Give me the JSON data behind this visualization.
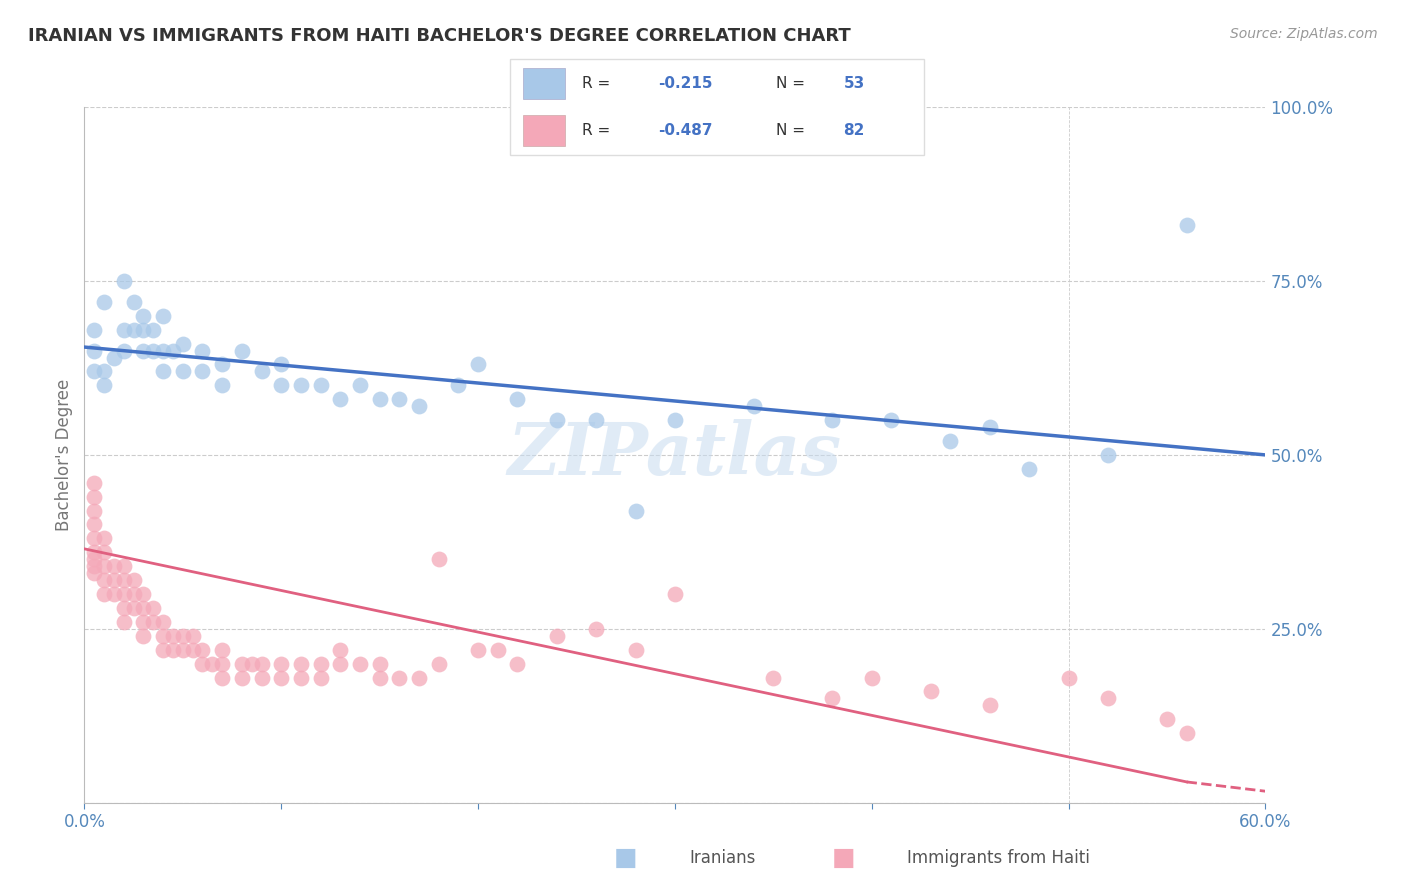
{
  "title": "IRANIAN VS IMMIGRANTS FROM HAITI BACHELOR'S DEGREE CORRELATION CHART",
  "source": "Source: ZipAtlas.com",
  "ylabel": "Bachelor's Degree",
  "xlim": [
    0.0,
    0.6
  ],
  "ylim": [
    0.0,
    1.0
  ],
  "y_ticks": [
    0.0,
    0.25,
    0.5,
    0.75,
    1.0
  ],
  "y_tick_labels_right": [
    "",
    "25.0%",
    "50.0%",
    "75.0%",
    "100.0%"
  ],
  "x_ticks": [
    0.0,
    0.1,
    0.2,
    0.3,
    0.4,
    0.5,
    0.6
  ],
  "x_tick_labels": [
    "0.0%",
    "",
    "",
    "",
    "",
    "",
    "60.0%"
  ],
  "color_iranian": "#A8C8E8",
  "color_haiti": "#F4A8B8",
  "color_line_iranian": "#4472C4",
  "color_line_haiti": "#E06080",
  "iranians_label": "Iranians",
  "haiti_label": "Immigrants from Haiti",
  "legend_r1": "R =  -0.215",
  "legend_n1": "N = 53",
  "legend_r2": "R =  -0.487",
  "legend_n2": "N = 82",
  "iranian_x": [
    0.005,
    0.005,
    0.005,
    0.01,
    0.01,
    0.01,
    0.015,
    0.02,
    0.02,
    0.02,
    0.025,
    0.025,
    0.03,
    0.03,
    0.03,
    0.035,
    0.035,
    0.04,
    0.04,
    0.04,
    0.045,
    0.05,
    0.05,
    0.06,
    0.06,
    0.07,
    0.07,
    0.08,
    0.09,
    0.1,
    0.1,
    0.11,
    0.12,
    0.13,
    0.14,
    0.15,
    0.16,
    0.17,
    0.19,
    0.2,
    0.22,
    0.24,
    0.26,
    0.28,
    0.3,
    0.34,
    0.38,
    0.41,
    0.44,
    0.46,
    0.48,
    0.52,
    0.56
  ],
  "iranian_y": [
    0.62,
    0.65,
    0.68,
    0.6,
    0.62,
    0.72,
    0.64,
    0.65,
    0.68,
    0.75,
    0.68,
    0.72,
    0.65,
    0.68,
    0.7,
    0.65,
    0.68,
    0.62,
    0.65,
    0.7,
    0.65,
    0.62,
    0.66,
    0.62,
    0.65,
    0.6,
    0.63,
    0.65,
    0.62,
    0.6,
    0.63,
    0.6,
    0.6,
    0.58,
    0.6,
    0.58,
    0.58,
    0.57,
    0.6,
    0.63,
    0.58,
    0.55,
    0.55,
    0.42,
    0.55,
    0.57,
    0.55,
    0.55,
    0.52,
    0.54,
    0.48,
    0.5,
    0.83
  ],
  "haiti_x": [
    0.005,
    0.005,
    0.005,
    0.005,
    0.005,
    0.005,
    0.005,
    0.005,
    0.005,
    0.01,
    0.01,
    0.01,
    0.01,
    0.01,
    0.015,
    0.015,
    0.015,
    0.02,
    0.02,
    0.02,
    0.02,
    0.02,
    0.025,
    0.025,
    0.025,
    0.03,
    0.03,
    0.03,
    0.03,
    0.035,
    0.035,
    0.04,
    0.04,
    0.04,
    0.045,
    0.045,
    0.05,
    0.05,
    0.055,
    0.055,
    0.06,
    0.06,
    0.065,
    0.07,
    0.07,
    0.07,
    0.08,
    0.08,
    0.085,
    0.09,
    0.09,
    0.1,
    0.1,
    0.11,
    0.11,
    0.12,
    0.12,
    0.13,
    0.13,
    0.14,
    0.15,
    0.15,
    0.16,
    0.17,
    0.18,
    0.18,
    0.2,
    0.21,
    0.22,
    0.24,
    0.26,
    0.28,
    0.3,
    0.35,
    0.38,
    0.4,
    0.43,
    0.46,
    0.5,
    0.52,
    0.55,
    0.56
  ],
  "haiti_y": [
    0.33,
    0.34,
    0.35,
    0.36,
    0.38,
    0.4,
    0.42,
    0.44,
    0.46,
    0.3,
    0.32,
    0.34,
    0.36,
    0.38,
    0.3,
    0.32,
    0.34,
    0.26,
    0.28,
    0.3,
    0.32,
    0.34,
    0.28,
    0.3,
    0.32,
    0.24,
    0.26,
    0.28,
    0.3,
    0.26,
    0.28,
    0.22,
    0.24,
    0.26,
    0.22,
    0.24,
    0.22,
    0.24,
    0.22,
    0.24,
    0.2,
    0.22,
    0.2,
    0.18,
    0.2,
    0.22,
    0.18,
    0.2,
    0.2,
    0.18,
    0.2,
    0.18,
    0.2,
    0.18,
    0.2,
    0.18,
    0.2,
    0.2,
    0.22,
    0.2,
    0.18,
    0.2,
    0.18,
    0.18,
    0.2,
    0.35,
    0.22,
    0.22,
    0.2,
    0.24,
    0.25,
    0.22,
    0.3,
    0.18,
    0.15,
    0.18,
    0.16,
    0.14,
    0.18,
    0.15,
    0.12,
    0.1
  ]
}
